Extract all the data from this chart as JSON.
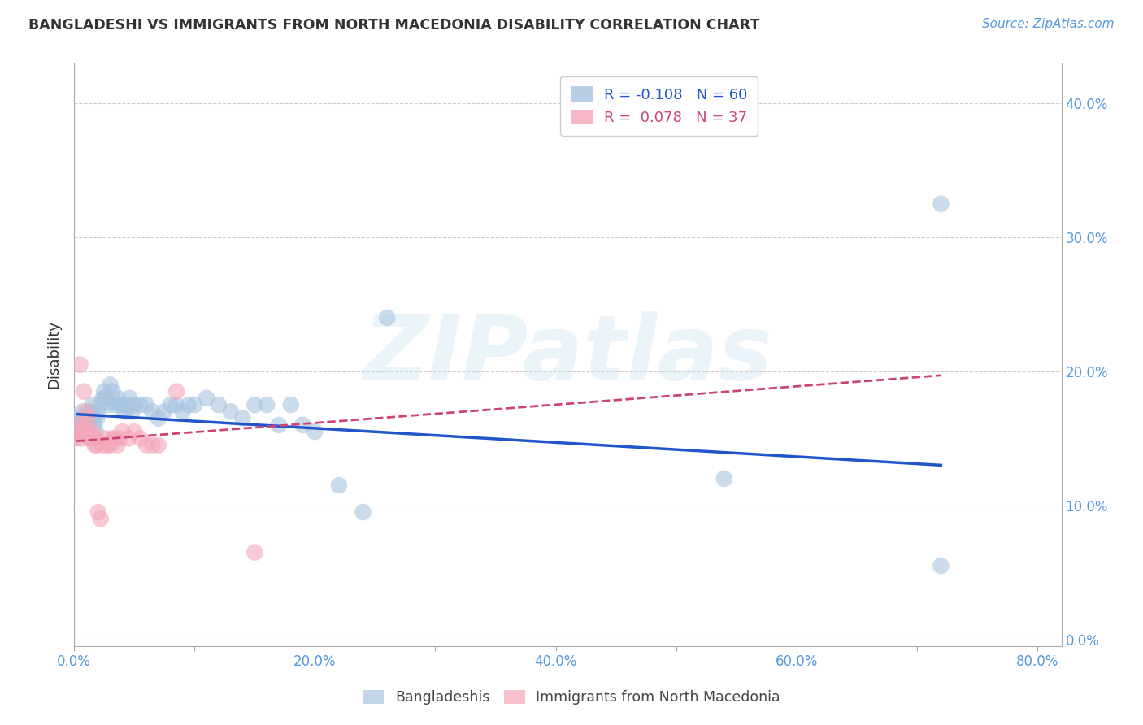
{
  "title": "BANGLADESHI VS IMMIGRANTS FROM NORTH MACEDONIA DISABILITY CORRELATION CHART",
  "source": "Source: ZipAtlas.com",
  "ylabel": "Disability",
  "watermark": "ZIPatlas",
  "legend_blue_r": "-0.108",
  "legend_blue_n": "60",
  "legend_pink_r": "0.078",
  "legend_pink_n": "37",
  "blue_color": "#A8C4E0",
  "pink_color": "#F4A7B9",
  "trend_blue_color": "#2255CC",
  "trend_pink_color": "#CC4477",
  "xlim": [
    0.0,
    0.82
  ],
  "ylim": [
    -0.005,
    0.43
  ],
  "xticks": [
    0.0,
    0.1,
    0.2,
    0.3,
    0.4,
    0.5,
    0.6,
    0.7,
    0.8
  ],
  "xtick_labels": [
    "0.0%",
    "",
    "20.0%",
    "",
    "40.0%",
    "",
    "60.0%",
    "",
    "80.0%"
  ],
  "yticks": [
    0.0,
    0.1,
    0.2,
    0.3,
    0.4
  ],
  "ytick_labels": [
    "0.0%",
    "10.0%",
    "20.0%",
    "30.0%",
    "40.0%"
  ],
  "blue_scatter_x": [
    0.003,
    0.004,
    0.005,
    0.006,
    0.007,
    0.008,
    0.009,
    0.01,
    0.011,
    0.012,
    0.013,
    0.014,
    0.015,
    0.016,
    0.017,
    0.018,
    0.019,
    0.02,
    0.022,
    0.024,
    0.025,
    0.026,
    0.028,
    0.03,
    0.032,
    0.034,
    0.036,
    0.038,
    0.04,
    0.042,
    0.044,
    0.046,
    0.048,
    0.05,
    0.055,
    0.06,
    0.065,
    0.07,
    0.075,
    0.08,
    0.085,
    0.09,
    0.095,
    0.1,
    0.11,
    0.12,
    0.13,
    0.14,
    0.15,
    0.16,
    0.17,
    0.18,
    0.19,
    0.2,
    0.22,
    0.24,
    0.26,
    0.54,
    0.72,
    0.72
  ],
  "blue_scatter_y": [
    0.165,
    0.16,
    0.155,
    0.16,
    0.17,
    0.165,
    0.16,
    0.155,
    0.16,
    0.165,
    0.17,
    0.165,
    0.175,
    0.165,
    0.16,
    0.155,
    0.165,
    0.17,
    0.175,
    0.18,
    0.185,
    0.18,
    0.175,
    0.19,
    0.185,
    0.175,
    0.18,
    0.175,
    0.175,
    0.17,
    0.175,
    0.18,
    0.17,
    0.175,
    0.175,
    0.175,
    0.17,
    0.165,
    0.17,
    0.175,
    0.175,
    0.17,
    0.175,
    0.175,
    0.18,
    0.175,
    0.17,
    0.165,
    0.175,
    0.175,
    0.16,
    0.175,
    0.16,
    0.155,
    0.115,
    0.095,
    0.24,
    0.12,
    0.325,
    0.055
  ],
  "pink_scatter_x": [
    0.002,
    0.003,
    0.004,
    0.005,
    0.006,
    0.007,
    0.008,
    0.009,
    0.01,
    0.011,
    0.012,
    0.013,
    0.014,
    0.015,
    0.016,
    0.017,
    0.018,
    0.019,
    0.02,
    0.022,
    0.024,
    0.026,
    0.028,
    0.03,
    0.032,
    0.034,
    0.036,
    0.038,
    0.04,
    0.045,
    0.05,
    0.055,
    0.06,
    0.065,
    0.07,
    0.085,
    0.15
  ],
  "pink_scatter_y": [
    0.15,
    0.16,
    0.155,
    0.205,
    0.15,
    0.155,
    0.185,
    0.16,
    0.17,
    0.165,
    0.155,
    0.15,
    0.15,
    0.155,
    0.15,
    0.145,
    0.15,
    0.145,
    0.095,
    0.09,
    0.145,
    0.15,
    0.145,
    0.145,
    0.15,
    0.15,
    0.145,
    0.15,
    0.155,
    0.15,
    0.155,
    0.15,
    0.145,
    0.145,
    0.145,
    0.185,
    0.065
  ],
  "blue_trend_x0": 0.003,
  "blue_trend_x1": 0.72,
  "blue_trend_y0": 0.168,
  "blue_trend_y1": 0.13,
  "pink_trend_x0": 0.002,
  "pink_trend_x1": 0.72,
  "pink_trend_y0": 0.148,
  "pink_trend_y1": 0.197,
  "background_color": "#FFFFFF",
  "grid_color": "#CCCCCC",
  "spine_color": "#AAAAAA",
  "tick_color": "#5599DD",
  "label_color": "#333333",
  "source_color": "#5599DD",
  "legend_edge_color": "#CCCCCC",
  "bottom_legend_color": "#444444"
}
